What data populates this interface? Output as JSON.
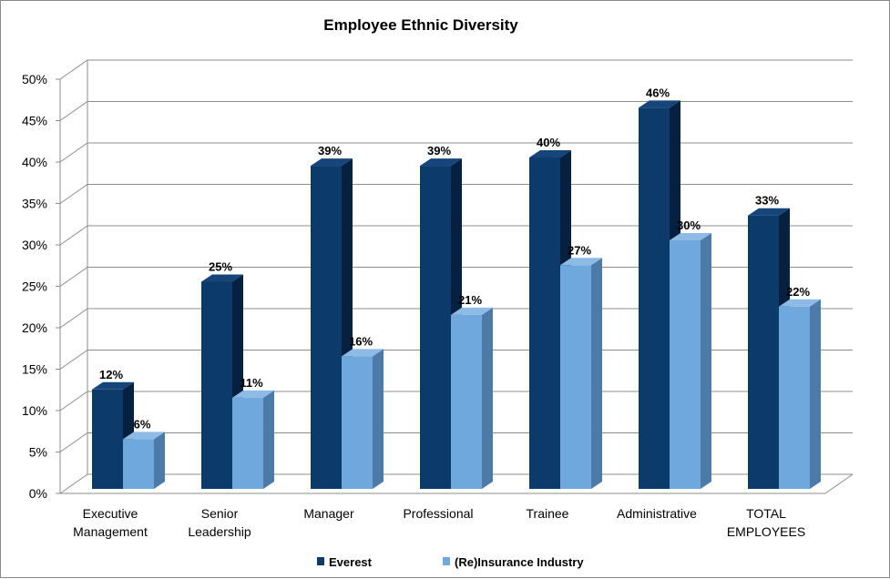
{
  "chart_data": {
    "type": "bar",
    "title": "Employee Ethnic Diversity",
    "xlabel": "",
    "ylabel": "",
    "ylim": [
      0,
      50
    ],
    "y_ticks": [
      "0%",
      "5%",
      "10%",
      "15%",
      "20%",
      "25%",
      "30%",
      "35%",
      "40%",
      "45%",
      "50%"
    ],
    "grid": true,
    "legend_position": "bottom",
    "categories": [
      [
        "Executive",
        "Management"
      ],
      [
        "Senior",
        "Leadership"
      ],
      [
        "Manager"
      ],
      [
        "Professional"
      ],
      [
        "Trainee"
      ],
      [
        "Administrative"
      ],
      [
        "TOTAL",
        "EMPLOYEES"
      ]
    ],
    "series": [
      {
        "name": "Everest",
        "color": "#0b3a6b",
        "values": [
          12,
          25,
          39,
          39,
          40,
          46,
          33
        ]
      },
      {
        "name": "(Re)Insurance Industry",
        "color": "#6fa8dc",
        "values": [
          6,
          11,
          16,
          21,
          27,
          30,
          22
        ]
      }
    ]
  }
}
